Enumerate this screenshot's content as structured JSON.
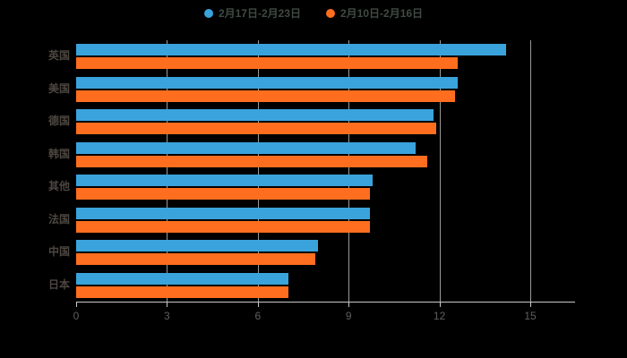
{
  "chart_data": {
    "type": "bar",
    "orientation": "horizontal",
    "title": "",
    "xlabel": "",
    "ylabel": "",
    "xlim": [
      0,
      16.5
    ],
    "x_ticks": [
      0,
      3,
      6,
      9,
      12,
      15
    ],
    "grid": true,
    "legend_position": "top-center",
    "background_color": "#000000",
    "categories": [
      "英国",
      "美国",
      "德国",
      "韩国",
      "其他",
      "法国",
      "中国",
      "日本"
    ],
    "series": [
      {
        "name": "2月17日-2月23日",
        "color": "#3BA3DC",
        "values": [
          14.2,
          12.6,
          11.8,
          11.2,
          9.8,
          9.7,
          8.0,
          7.0
        ]
      },
      {
        "name": "2月10日-2月16日",
        "color": "#FF6E1F",
        "values": [
          12.6,
          12.5,
          11.9,
          11.6,
          9.7,
          9.7,
          7.9,
          7.0
        ]
      }
    ]
  }
}
